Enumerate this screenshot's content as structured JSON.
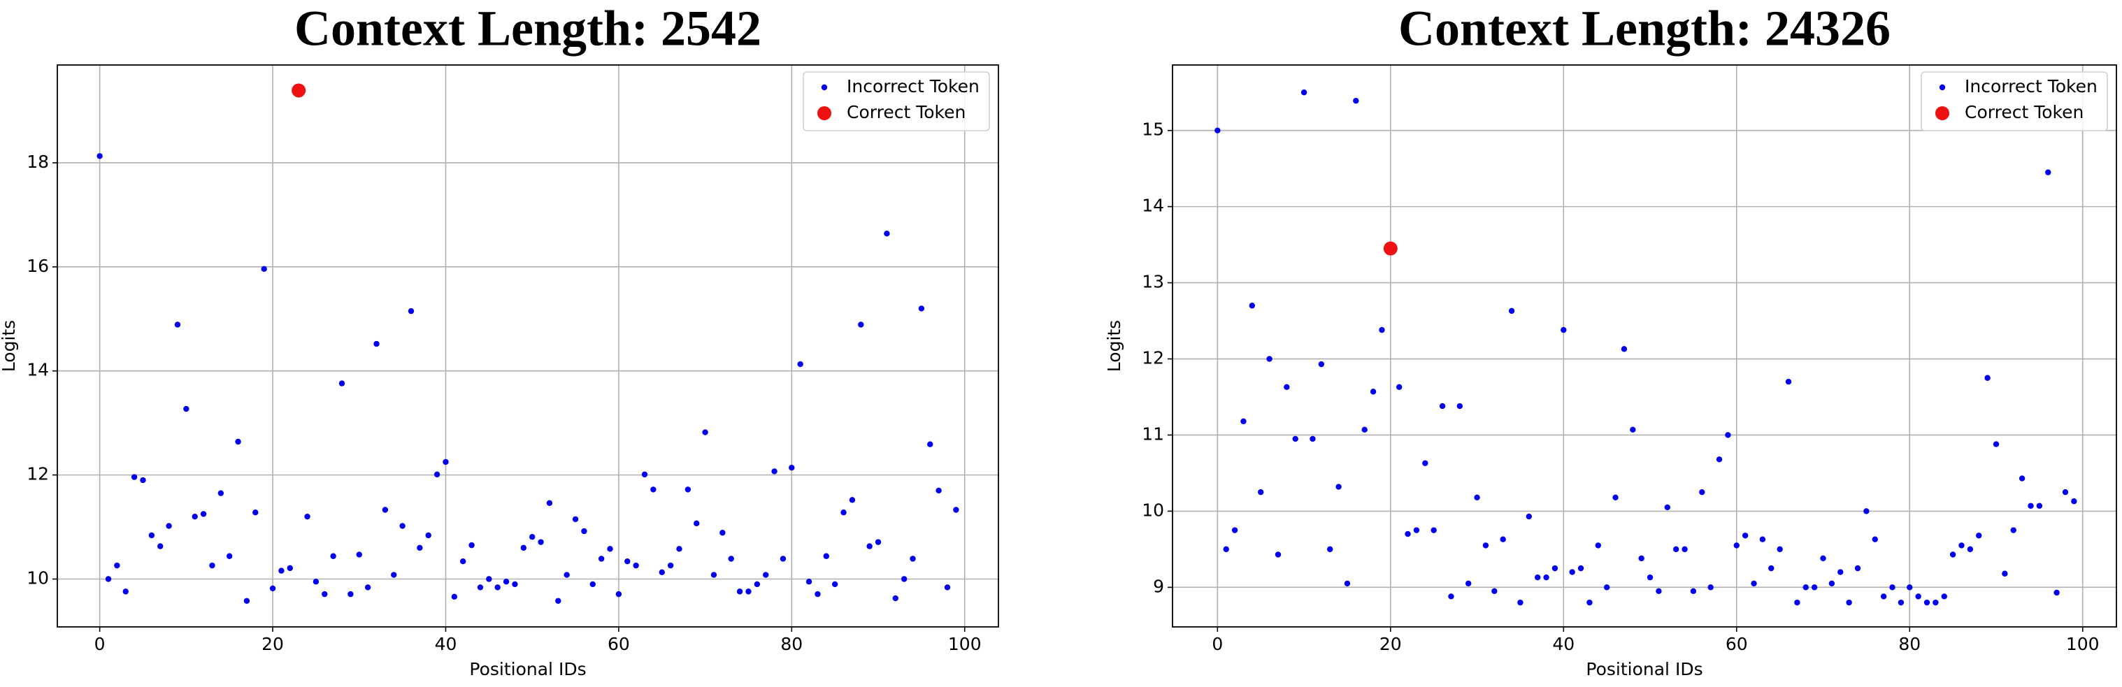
{
  "chart_data": [
    {
      "type": "scatter",
      "title": "Context Length: 2542",
      "xlabel": "Positional IDs",
      "ylabel": "Logits",
      "xlim": [
        -4.9,
        103.9
      ],
      "ylim": [
        9.08,
        19.88
      ],
      "xticks": [
        0,
        20,
        40,
        60,
        80,
        100
      ],
      "yticks": [
        10,
        12,
        14,
        16,
        18
      ],
      "grid": true,
      "legend": "upper right",
      "series": [
        {
          "name": "Incorrect Token",
          "color": "#0000ee",
          "x": [
            0,
            1,
            2,
            3,
            4,
            5,
            6,
            7,
            8,
            9,
            10,
            11,
            12,
            13,
            14,
            15,
            16,
            17,
            18,
            19,
            20,
            21,
            22,
            24,
            25,
            26,
            27,
            28,
            29,
            30,
            31,
            32,
            33,
            34,
            35,
            36,
            37,
            38,
            39,
            40,
            41,
            42,
            43,
            44,
            45,
            46,
            47,
            48,
            49,
            50,
            51,
            52,
            53,
            54,
            55,
            56,
            57,
            58,
            59,
            60,
            61,
            62,
            63,
            64,
            65,
            66,
            67,
            68,
            69,
            70,
            71,
            72,
            73,
            74,
            75,
            76,
            77,
            78,
            79,
            80,
            81,
            82,
            83,
            84,
            85,
            86,
            87,
            88,
            89,
            90,
            91,
            92,
            93,
            94,
            95,
            96,
            97,
            98,
            99
          ],
          "values": [
            18.13,
            10.0,
            10.26,
            9.76,
            11.96,
            11.9,
            10.84,
            10.63,
            11.02,
            14.89,
            13.27,
            11.2,
            11.25,
            10.26,
            11.65,
            10.44,
            12.64,
            9.58,
            11.28,
            15.96,
            9.82,
            10.16,
            10.21,
            11.2,
            9.95,
            9.71,
            10.44,
            13.76,
            9.71,
            10.47,
            9.84,
            14.52,
            11.33,
            10.08,
            11.02,
            15.15,
            10.6,
            10.84,
            12.01,
            12.25,
            9.66,
            10.34,
            10.65,
            9.84,
            10.0,
            9.84,
            9.95,
            9.9,
            10.6,
            10.81,
            10.71,
            11.46,
            9.58,
            10.08,
            11.15,
            10.92,
            9.9,
            10.39,
            10.58,
            9.71,
            10.34,
            10.26,
            12.01,
            11.72,
            10.13,
            10.26,
            10.58,
            11.72,
            11.07,
            12.82,
            10.08,
            10.89,
            10.39,
            9.76,
            9.76,
            9.9,
            10.08,
            12.07,
            10.39,
            12.14,
            14.13,
            9.95,
            9.71,
            10.44,
            9.9,
            11.28,
            11.52,
            14.89,
            10.63,
            10.71,
            16.64,
            9.63,
            10.0,
            10.39,
            15.2,
            12.59,
            11.7,
            9.84,
            11.33
          ]
        },
        {
          "name": "Correct Token",
          "color": "#ee1111",
          "x": [
            23
          ],
          "values": [
            19.39
          ]
        }
      ]
    },
    {
      "type": "scatter",
      "title": "Context Length: 24326",
      "xlabel": "Positional IDs",
      "ylabel": "Logits",
      "xlim": [
        -5.2,
        103.9
      ],
      "ylim": [
        8.48,
        15.86
      ],
      "xticks": [
        0,
        20,
        40,
        60,
        80,
        100
      ],
      "yticks": [
        9,
        10,
        11,
        12,
        13,
        14,
        15
      ],
      "grid": true,
      "legend": "upper right",
      "series": [
        {
          "name": "Incorrect Token",
          "color": "#0000ee",
          "x": [
            0,
            1,
            2,
            3,
            4,
            5,
            6,
            7,
            8,
            9,
            10,
            11,
            12,
            13,
            14,
            15,
            16,
            17,
            18,
            19,
            21,
            22,
            23,
            24,
            25,
            26,
            27,
            28,
            29,
            30,
            31,
            32,
            33,
            34,
            35,
            36,
            37,
            38,
            39,
            40,
            41,
            42,
            43,
            44,
            45,
            46,
            47,
            48,
            49,
            50,
            51,
            52,
            53,
            54,
            55,
            56,
            57,
            58,
            59,
            60,
            61,
            62,
            63,
            64,
            65,
            66,
            67,
            68,
            69,
            70,
            71,
            72,
            73,
            74,
            75,
            76,
            77,
            78,
            79,
            80,
            81,
            82,
            83,
            84,
            85,
            86,
            87,
            88,
            89,
            90,
            91,
            92,
            93,
            94,
            95,
            96,
            97,
            98,
            99
          ],
          "values": [
            15.0,
            9.5,
            9.75,
            11.18,
            12.7,
            10.25,
            12.0,
            9.43,
            11.63,
            10.95,
            15.5,
            10.95,
            11.93,
            9.5,
            10.32,
            9.05,
            15.39,
            11.07,
            11.57,
            12.38,
            11.63,
            9.7,
            9.75,
            10.63,
            9.75,
            11.38,
            8.88,
            11.38,
            9.05,
            10.18,
            9.55,
            8.95,
            9.63,
            12.63,
            8.8,
            9.93,
            9.13,
            9.13,
            9.25,
            12.38,
            9.2,
            9.25,
            8.8,
            9.55,
            9.0,
            10.18,
            12.13,
            11.07,
            9.38,
            9.13,
            8.95,
            10.05,
            9.5,
            9.5,
            8.95,
            10.25,
            9.0,
            10.68,
            11.0,
            9.55,
            9.68,
            9.05,
            9.63,
            9.25,
            9.5,
            11.7,
            8.8,
            9.0,
            9.0,
            9.38,
            9.05,
            9.2,
            8.8,
            9.25,
            10.0,
            9.63,
            8.88,
            9.0,
            8.8,
            9.0,
            8.88,
            8.8,
            8.8,
            8.88,
            9.43,
            9.55,
            9.5,
            9.68,
            11.75,
            10.88,
            9.18,
            9.75,
            10.43,
            10.07,
            10.07,
            14.45,
            8.93,
            10.25,
            10.13
          ]
        },
        {
          "name": "Correct Token",
          "color": "#ee1111",
          "x": [
            20
          ],
          "values": [
            13.45
          ]
        }
      ]
    }
  ]
}
